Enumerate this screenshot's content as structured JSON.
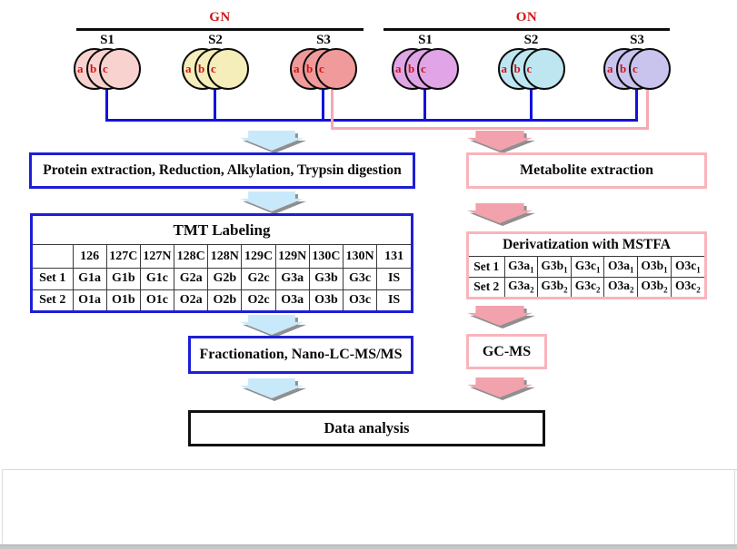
{
  "colors": {
    "blue": "#1e1ed6",
    "pink": "#f9b4bb",
    "blue_arrow": "#c8e9fa",
    "pink_arrow": "#f1a2ac",
    "line_blue": "#1212dd",
    "line_pink": "#f4a9b3",
    "red": "#d21414",
    "grid": "#3a3a3a"
  },
  "sample_section": {
    "gn": {
      "title": "GN",
      "samples": [
        {
          "label": "S1",
          "circle_color": "#f8d2ce",
          "replicates": [
            "a",
            "b",
            "c"
          ]
        },
        {
          "label": "S2",
          "circle_color": "#f5edba",
          "replicates": [
            "a",
            "b",
            "c"
          ]
        },
        {
          "label": "S3",
          "circle_color": "#f09a9b",
          "replicates": [
            "a",
            "b",
            "c"
          ]
        }
      ]
    },
    "on": {
      "title": "ON",
      "samples": [
        {
          "label": "S1",
          "circle_color": "#e1a5e7",
          "replicates": [
            "a",
            "b",
            "c"
          ]
        },
        {
          "label": "S2",
          "circle_color": "#bde6f1",
          "replicates": [
            "a",
            "b",
            "c"
          ]
        },
        {
          "label": "S3",
          "circle_color": "#c8c4ee",
          "replicates": [
            "a",
            "b",
            "c"
          ]
        }
      ]
    }
  },
  "flow_boxes": {
    "protein": "Protein extraction, Reduction, Alkylation, Trypsin digestion",
    "metabolite": "Metabolite extraction",
    "fractionation": "Fractionation, Nano-LC-MS/MS",
    "gcms": "GC-MS",
    "data_analysis": "Data analysis"
  },
  "tmt_table": {
    "title": "TMT Labeling",
    "col_headers": [
      "",
      "126",
      "127C",
      "127N",
      "128C",
      "128N",
      "129C",
      "129N",
      "130C",
      "130N",
      "131"
    ],
    "rows": [
      {
        "label": "Set 1",
        "cells": [
          "G1a",
          "G1b",
          "G1c",
          "G2a",
          "G2b",
          "G2c",
          "G3a",
          "G3b",
          "G3c",
          "IS"
        ]
      },
      {
        "label": "Set 2",
        "cells": [
          "O1a",
          "O1b",
          "O1c",
          "O2a",
          "O2b",
          "O2c",
          "O3a",
          "O3b",
          "O3c",
          "IS"
        ]
      }
    ]
  },
  "derivatization_table": {
    "title": "Derivatization with MSTFA",
    "rows": [
      {
        "label": "Set 1",
        "cells": [
          {
            "base": "G3a",
            "sub": "1"
          },
          {
            "base": "G3b",
            "sub": "1"
          },
          {
            "base": "G3c",
            "sub": "1"
          },
          {
            "base": "O3a",
            "sub": "1"
          },
          {
            "base": "O3b",
            "sub": "1"
          },
          {
            "base": "O3c",
            "sub": "1"
          }
        ]
      },
      {
        "label": "Set 2",
        "cells": [
          {
            "base": "G3a",
            "sub": "2"
          },
          {
            "base": "G3b",
            "sub": "2"
          },
          {
            "base": "G3c",
            "sub": "2"
          },
          {
            "base": "O3a",
            "sub": "2"
          },
          {
            "base": "O3b",
            "sub": "2"
          },
          {
            "base": "O3c",
            "sub": "2"
          }
        ]
      }
    ]
  }
}
